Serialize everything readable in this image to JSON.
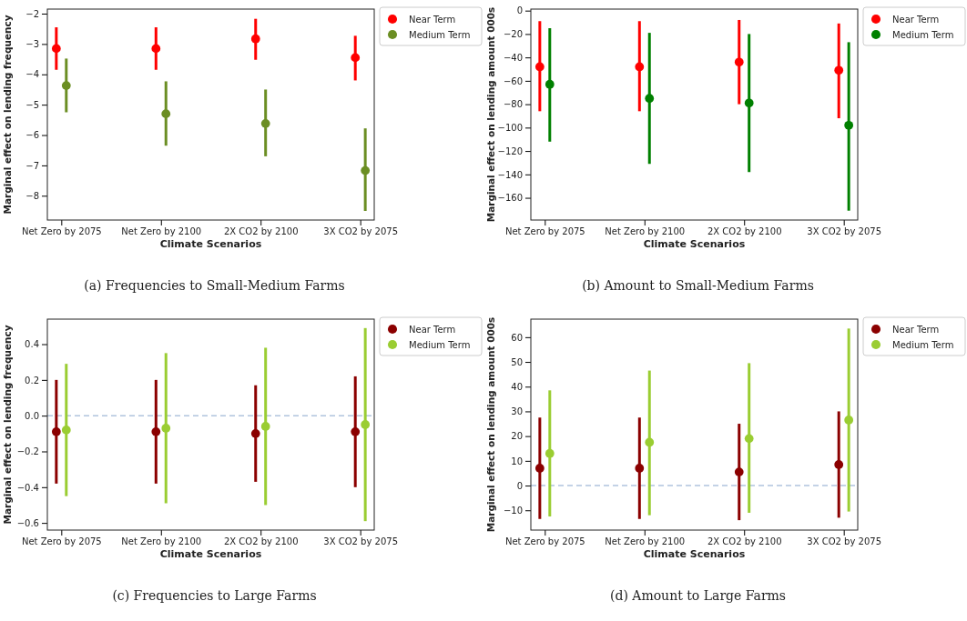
{
  "chart_data": [
    {
      "type": "scatter",
      "title": "(a) Frequencies to Small-Medium Farms",
      "xlabel": "Climate Scenarios",
      "ylabel": "Marginal effect on lending frequency",
      "categories": [
        "Net Zero by 2075",
        "Net Zero by 2100",
        "2X CO2 by 2100",
        "3X CO2 by 2075"
      ],
      "ylim": [
        -8.8,
        -1.85
      ],
      "yticks": [
        -8,
        -7,
        -6,
        -5,
        -4,
        -3,
        -2
      ],
      "marker": "circle",
      "legend": "top right",
      "series": [
        {
          "name": "Near Term",
          "color": "#ff0000",
          "values": [
            -3.15,
            -3.15,
            -2.83,
            -3.45
          ],
          "errors": [
            [
              -3.85,
              -2.45
            ],
            [
              -3.85,
              -2.45
            ],
            [
              -3.52,
              -2.17
            ],
            [
              -4.2,
              -2.73
            ]
          ]
        },
        {
          "name": "Medium Term",
          "color": "#6b8e23",
          "values": [
            -4.37,
            -5.3,
            -5.62,
            -7.17
          ],
          "errors": [
            [
              -5.25,
              -3.48
            ],
            [
              -6.35,
              -4.23
            ],
            [
              -6.7,
              -4.5
            ],
            [
              -8.5,
              -5.78
            ]
          ]
        }
      ]
    },
    {
      "type": "scatter",
      "title": "(b) Amount to Small-Medium Farms",
      "xlabel": "Climate Scenarios",
      "ylabel": "Marginal effect on lending amount 000s",
      "categories": [
        "Net Zero by 2075",
        "Net Zero by 2100",
        "2X CO2 by 2100",
        "3X CO2 by 2075"
      ],
      "ylim": [
        -179,
        1.3
      ],
      "yticks": [
        -160,
        -140,
        -120,
        -100,
        -80,
        -60,
        -40,
        -20,
        0
      ],
      "marker": "circle",
      "legend": "top right",
      "series": [
        {
          "name": "Near Term",
          "color": "#ff0000",
          "values": [
            -48,
            -48,
            -44,
            -51
          ],
          "errors": [
            [
              -86,
              -9
            ],
            [
              -86,
              -9
            ],
            [
              -80,
              -8
            ],
            [
              -92,
              -11
            ]
          ]
        },
        {
          "name": "Medium Term",
          "color": "#008000",
          "values": [
            -63,
            -75,
            -79,
            -98
          ],
          "errors": [
            [
              -112,
              -15
            ],
            [
              -131,
              -19
            ],
            [
              -138,
              -20
            ],
            [
              -171,
              -27
            ]
          ]
        }
      ]
    },
    {
      "type": "scatter",
      "title": "(c) Frequencies to Large Farms",
      "xlabel": "Climate Scenarios",
      "ylabel": "Marginal effect on lending frequency",
      "categories": [
        "Net Zero by 2075",
        "Net Zero by 2100",
        "2X CO2 by 2100",
        "3X CO2 by 2075"
      ],
      "ylim": [
        -0.64,
        0.54
      ],
      "yticks": [
        {
          "value": -0.6,
          "label": "−0.6"
        },
        {
          "value": -0.4,
          "label": "−0.4"
        },
        {
          "value": -0.2,
          "label": "−0.2"
        },
        {
          "value": 0,
          "label": "0.0"
        },
        {
          "value": 0.2,
          "label": "0.2"
        },
        {
          "value": 0.4,
          "label": "0.4"
        }
      ],
      "marker": "circle",
      "legend": "top right",
      "ref_lines": [
        {
          "axis": "y",
          "value": 0,
          "color": "#b0c4de",
          "line_style": "dashed"
        }
      ],
      "series": [
        {
          "name": "Near Term",
          "color": "#8b0000",
          "values": [
            -0.09,
            -0.09,
            -0.1,
            -0.09
          ],
          "errors": [
            [
              -0.38,
              0.2
            ],
            [
              -0.38,
              0.2
            ],
            [
              -0.37,
              0.17
            ],
            [
              -0.4,
              0.22
            ]
          ]
        },
        {
          "name": "Medium Term",
          "color": "#9acd32",
          "values": [
            -0.08,
            -0.07,
            -0.06,
            -0.05
          ],
          "errors": [
            [
              -0.45,
              0.29
            ],
            [
              -0.49,
              0.35
            ],
            [
              -0.5,
              0.38
            ],
            [
              -0.59,
              0.49
            ]
          ]
        }
      ]
    },
    {
      "type": "scatter",
      "title": "(d) Amount to Large Farms",
      "xlabel": "Climate Scenarios",
      "ylabel": "Marginal effect on lending amount 000s",
      "categories": [
        "Net Zero by 2075",
        "Net Zero by 2100",
        "2X CO2 by 2100",
        "3X CO2 by 2075"
      ],
      "ylim": [
        -18,
        67.3
      ],
      "yticks": [
        -10,
        0,
        10,
        20,
        30,
        40,
        50,
        60
      ],
      "marker": "circle",
      "legend": "top right",
      "ref_lines": [
        {
          "axis": "y",
          "value": 0,
          "color": "#b0c4de",
          "line_style": "dashed"
        }
      ],
      "series": [
        {
          "name": "Near Term",
          "color": "#8b0000",
          "values": [
            7,
            7,
            5.5,
            8.5
          ],
          "errors": [
            [
              -13.5,
              27.5
            ],
            [
              -13.5,
              27.5
            ],
            [
              -14,
              25
            ],
            [
              -13,
              30
            ]
          ]
        },
        {
          "name": "Medium Term",
          "color": "#9acd32",
          "values": [
            13,
            17.5,
            19,
            26.5
          ],
          "errors": [
            [
              -12.5,
              38.5
            ],
            [
              -12,
              46.5
            ],
            [
              -11,
              49.5
            ],
            [
              -10.5,
              63.5
            ]
          ]
        }
      ]
    }
  ]
}
